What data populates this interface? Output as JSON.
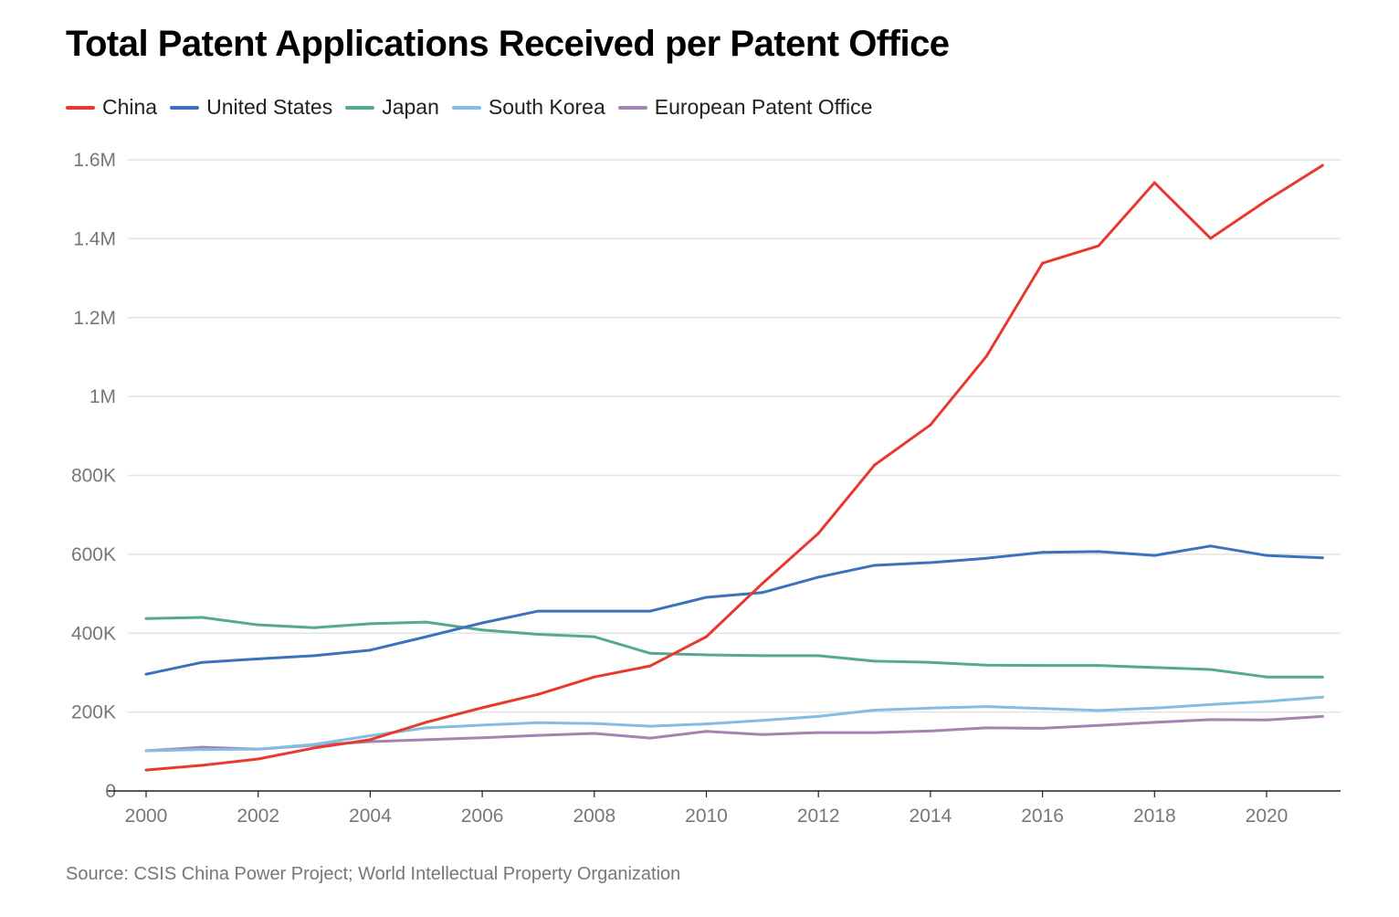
{
  "chart_data": {
    "type": "line",
    "title": "Total Patent Applications Received per Patent Office",
    "source": "Source: CSIS China Power Project; World Intellectual Property Organization",
    "xlabel": "",
    "ylabel": "",
    "x": [
      2000,
      2001,
      2002,
      2003,
      2004,
      2005,
      2006,
      2007,
      2008,
      2009,
      2010,
      2011,
      2012,
      2013,
      2014,
      2015,
      2016,
      2017,
      2018,
      2019,
      2020,
      2021
    ],
    "xticks": [
      "2000",
      "2002",
      "2004",
      "2006",
      "2008",
      "2010",
      "2012",
      "2014",
      "2016",
      "2018",
      "2020"
    ],
    "yticks": [
      {
        "v": 0,
        "label": "0"
      },
      {
        "v": 200000,
        "label": "200K"
      },
      {
        "v": 400000,
        "label": "400K"
      },
      {
        "v": 600000,
        "label": "600K"
      },
      {
        "v": 800000,
        "label": "800K"
      },
      {
        "v": 1000000,
        "label": "1M"
      },
      {
        "v": 1200000,
        "label": "1.2M"
      },
      {
        "v": 1400000,
        "label": "1.4M"
      },
      {
        "v": 1600000,
        "label": "1.6M"
      }
    ],
    "ylim": [
      0,
      1600000
    ],
    "grid": true,
    "legend_position": "top-left",
    "series": [
      {
        "name": "China",
        "color": "#e8392f",
        "values": [
          53000,
          65000,
          81000,
          109000,
          130000,
          174000,
          211000,
          245000,
          289000,
          317000,
          391000,
          526000,
          653000,
          826000,
          928000,
          1102000,
          1338000,
          1382000,
          1542000,
          1401000,
          1497000,
          1586000
        ]
      },
      {
        "name": "United States",
        "color": "#3b72bd",
        "values": [
          296000,
          326000,
          335000,
          343000,
          357000,
          391000,
          426000,
          456000,
          456000,
          456000,
          491000,
          503000,
          542000,
          572000,
          579000,
          590000,
          605000,
          607000,
          597000,
          621000,
          597000,
          591000
        ]
      },
      {
        "name": "Japan",
        "color": "#55a892",
        "values": [
          437000,
          440000,
          421000,
          414000,
          424000,
          428000,
          408000,
          397000,
          391000,
          349000,
          345000,
          343000,
          343000,
          329000,
          326000,
          319000,
          318000,
          318000,
          313000,
          308000,
          289000,
          289000
        ]
      },
      {
        "name": "South Korea",
        "color": "#84bde3",
        "values": [
          102000,
          105000,
          106000,
          118000,
          140000,
          160000,
          167000,
          173000,
          171000,
          164000,
          170000,
          179000,
          189000,
          205000,
          210000,
          214000,
          209000,
          204000,
          210000,
          219000,
          227000,
          238000
        ]
      },
      {
        "name": "European Patent Office",
        "color": "#a584b1",
        "values": [
          102000,
          111000,
          106000,
          116000,
          125000,
          130000,
          135000,
          141000,
          146000,
          134000,
          151000,
          143000,
          148000,
          148000,
          152000,
          160000,
          159000,
          166000,
          174000,
          181000,
          180000,
          189000
        ]
      }
    ]
  }
}
